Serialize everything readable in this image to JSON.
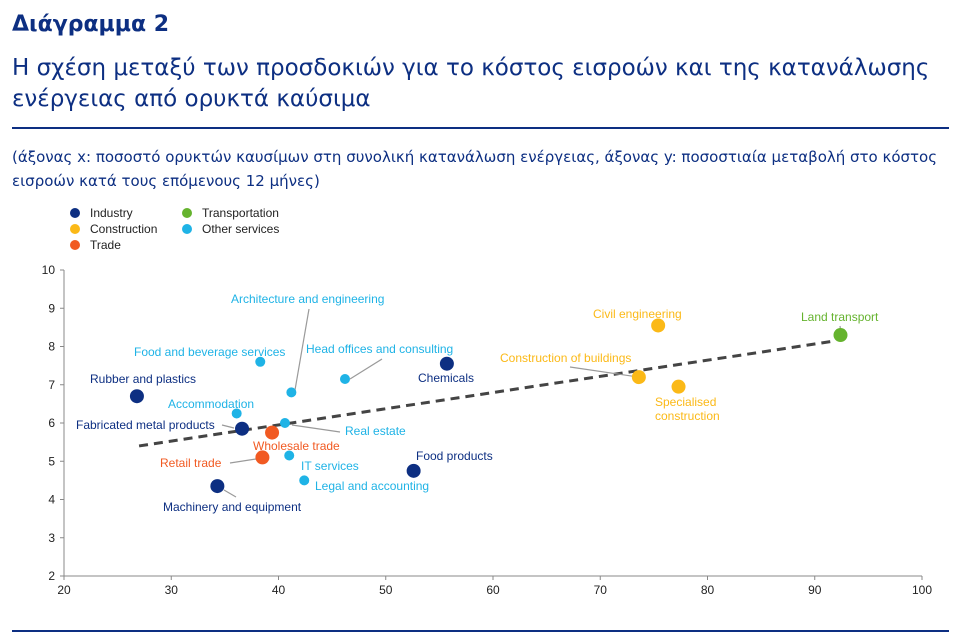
{
  "header": {
    "figure_label": "Διάγραμμα 2",
    "title": "Η σχέση μεταξύ των προσδοκιών για το κόστος εισροών και της κατανάλωσης ενέργειας από ορυκτά καύσιμα",
    "subtitle": "(άξονας x: ποσοστό ορυκτών καυσίμων στη συνολική κατανάλωση ενέργειας, άξονας y: ποσοστιαία μεταβολή στο κόστος εισροών κατά τους επόμενους 12 μήνες)"
  },
  "legend": [
    {
      "name": "Industry",
      "color": "#0d2f82"
    },
    {
      "name": "Construction",
      "color": "#fbb917"
    },
    {
      "name": "Trade",
      "color": "#f15a22"
    },
    {
      "name": "Transportation",
      "color": "#65b32e"
    },
    {
      "name": "Other services",
      "color": "#1fb3e6"
    }
  ],
  "chart_data": {
    "type": "scatter",
    "xlabel": "",
    "ylabel": "",
    "xlim": [
      20,
      100
    ],
    "ylim": [
      2,
      10
    ],
    "xticks": [
      20,
      30,
      40,
      50,
      60,
      70,
      80,
      90,
      100
    ],
    "yticks": [
      2,
      3,
      4,
      5,
      6,
      7,
      8,
      9,
      10
    ],
    "legend_position": "top-left",
    "grid": false,
    "series": [
      {
        "name": "Industry",
        "color": "#0d2f82",
        "points": [
          {
            "label": "Rubber and plastics",
            "x": 26.8,
            "y": 6.7
          },
          {
            "label": "Fabricated metal products",
            "x": 36.6,
            "y": 5.85
          },
          {
            "label": "Machinery and equipment",
            "x": 34.3,
            "y": 4.35
          },
          {
            "label": "Chemicals",
            "x": 55.7,
            "y": 7.55
          },
          {
            "label": "Food products",
            "x": 52.6,
            "y": 4.75
          }
        ]
      },
      {
        "name": "Construction",
        "color": "#fbb917",
        "points": [
          {
            "label": "Civil engineering",
            "x": 75.4,
            "y": 8.55
          },
          {
            "label": "Construction of buildings",
            "x": 73.6,
            "y": 7.2
          },
          {
            "label": "Specialised construction",
            "x": 77.3,
            "y": 6.95
          }
        ]
      },
      {
        "name": "Trade",
        "color": "#f15a22",
        "points": [
          {
            "label": "Wholesale trade",
            "x": 39.4,
            "y": 5.75
          },
          {
            "label": "Retail trade",
            "x": 38.5,
            "y": 5.1
          }
        ]
      },
      {
        "name": "Transportation",
        "color": "#65b32e",
        "points": [
          {
            "label": "Land transport",
            "x": 92.4,
            "y": 8.3
          }
        ]
      },
      {
        "name": "Other services",
        "color": "#1fb3e6",
        "points": [
          {
            "label": "Architecture and engineering",
            "x": 41.2,
            "y": 6.8
          },
          {
            "label": "Food and beverage  services",
            "x": 38.3,
            "y": 7.6
          },
          {
            "label": "Head offices and consulting",
            "x": 46.2,
            "y": 7.15
          },
          {
            "label": "Accommodation",
            "x": 36.1,
            "y": 6.25
          },
          {
            "label": "Real estate",
            "x": 40.6,
            "y": 6.0
          },
          {
            "label": "IT services",
            "x": 41.0,
            "y": 5.15
          },
          {
            "label": "Legal and accounting",
            "x": 42.4,
            "y": 4.5
          }
        ]
      }
    ],
    "trendline": {
      "style": "dashed",
      "color": "#444444",
      "from": {
        "x": 27.0,
        "y": 5.4
      },
      "to": {
        "x": 92.0,
        "y": 8.15
      }
    }
  }
}
